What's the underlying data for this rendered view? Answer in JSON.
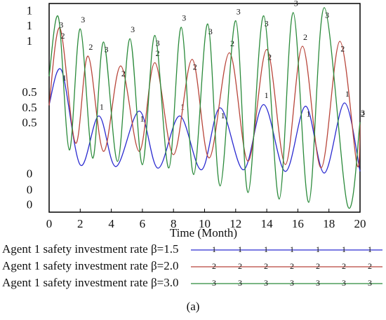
{
  "chart_data": {
    "type": "line",
    "xlabel": "Time (Month)",
    "caption": "(a)",
    "xlim": [
      0,
      20
    ],
    "xticks": [
      0,
      2,
      4,
      6,
      8,
      10,
      12,
      14,
      16,
      18,
      20
    ],
    "series": [
      {
        "name": "Agent 1 safety investment rate β=1.5",
        "marker": "1",
        "color": "#2a2ad0",
        "ylim": [
          -0.23,
          1.05
        ],
        "yticks": [
          0,
          0.5,
          1
        ],
        "x": [
          0,
          0.8,
          2,
          3.2,
          4.3,
          5.8,
          7,
          8.4,
          9.8,
          11,
          12.5,
          13.8,
          15.2,
          16.5,
          17.7,
          19,
          20
        ],
        "values": [
          0.43,
          0.64,
          0.06,
          0.36,
          0.05,
          0.39,
          0.04,
          0.36,
          0.03,
          0.41,
          0.03,
          0.43,
          0.02,
          0.42,
          0.01,
          0.44,
          0.02
        ]
      },
      {
        "name": "Agent 1 safety investment rate β=2.0",
        "marker": "2",
        "color": "#b8453a",
        "ylim": [
          -0.13,
          1.14
        ],
        "yticks": [
          0,
          0.5,
          1
        ],
        "x": [
          0,
          0.7,
          1.7,
          2.5,
          3.5,
          4.6,
          5.8,
          6.8,
          8,
          9.2,
          10.3,
          11.6,
          12.8,
          14,
          15.2,
          16.3,
          17.5,
          18.7,
          19.8,
          20
        ],
        "values": [
          0.52,
          0.99,
          0.29,
          0.82,
          0.24,
          0.76,
          0.24,
          0.78,
          0.22,
          0.8,
          0.2,
          0.84,
          0.18,
          0.86,
          0.16,
          0.88,
          0.14,
          0.91,
          0.16,
          0.41
        ]
      },
      {
        "name": "Agent 1 safety investment rate β=3.0",
        "marker": "3",
        "color": "#2a8a3a",
        "ylim": [
          -0.04,
          1.235
        ],
        "yticks": [
          0,
          0.5,
          1
        ],
        "x": [
          0,
          0.6,
          1.3,
          2,
          2.8,
          3.5,
          4.4,
          5.2,
          6,
          6.8,
          7.7,
          8.5,
          9.3,
          10.2,
          11,
          12,
          12.8,
          13.8,
          14.8,
          15.7,
          16.7,
          17.7,
          19.2,
          20
        ],
        "values": [
          0.79,
          1.15,
          0.34,
          1.08,
          0.29,
          1.0,
          0.27,
          1.02,
          0.25,
          1.04,
          0.23,
          1.09,
          0.19,
          1.11,
          0.12,
          1.13,
          0.08,
          1.16,
          0.04,
          1.18,
          0.02,
          1.21,
          0.0,
          0.51
        ]
      }
    ]
  }
}
